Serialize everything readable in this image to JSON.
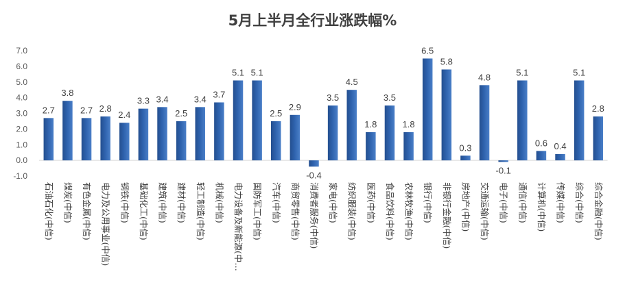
{
  "chart_data": {
    "type": "bar",
    "title": "5月上半月全行业涨跌幅%",
    "xlabel": "",
    "ylabel": "",
    "ylim": [
      -1.0,
      7.0
    ],
    "yticks": [
      "7.0",
      "6.0",
      "5.0",
      "4.0",
      "3.0",
      "2.0",
      "1.0",
      "0.0",
      "-1.0"
    ],
    "grid": false,
    "legend": "none",
    "bar_color": "#2e62ad",
    "categories": [
      "石油石化(中信)",
      "煤炭(中信)",
      "有色金属(中信)",
      "电力及公用事业(中信)",
      "钢铁(中信)",
      "基础化工(中信)",
      "建筑(中信)",
      "建材(中信)",
      "轻工制造(中信)",
      "机械(中信)",
      "电力设备及新能源(中…",
      "国防军工(中信)",
      "汽车(中信)",
      "商贸零售(中信)",
      "消费者服务(中信)",
      "家电(中信)",
      "纺织服装(中信)",
      "医药(中信)",
      "食品饮料(中信)",
      "农林牧渔(中信)",
      "银行(中信)",
      "非银行金融(中信)",
      "房地产(中信)",
      "交通运输(中信)",
      "电子(中信)",
      "通信(中信)",
      "计算机(中信)",
      "传媒(中信)",
      "综合(中信)",
      "综合金融(中信)"
    ],
    "values": [
      2.7,
      3.8,
      2.7,
      2.8,
      2.4,
      3.3,
      3.4,
      2.5,
      3.4,
      3.7,
      5.1,
      5.1,
      2.5,
      2.9,
      -0.4,
      3.5,
      4.5,
      1.8,
      3.5,
      1.8,
      6.5,
      5.8,
      0.3,
      4.8,
      -0.1,
      5.1,
      0.6,
      0.4,
      5.1,
      2.8
    ],
    "data_labels": [
      "2.7",
      "3.8",
      "2.7",
      "2.8",
      "2.4",
      "3.3",
      "3.4",
      "2.5",
      "3.4",
      "3.7",
      "5.1",
      "5.1",
      "2.5",
      "2.9",
      "-0.4",
      "3.5",
      "4.5",
      "1.8",
      "3.5",
      "1.8",
      "6.5",
      "5.8",
      "0.3",
      "4.8",
      "-0.1",
      "5.1",
      "0.6",
      "0.4",
      "5.1",
      "2.8"
    ]
  }
}
